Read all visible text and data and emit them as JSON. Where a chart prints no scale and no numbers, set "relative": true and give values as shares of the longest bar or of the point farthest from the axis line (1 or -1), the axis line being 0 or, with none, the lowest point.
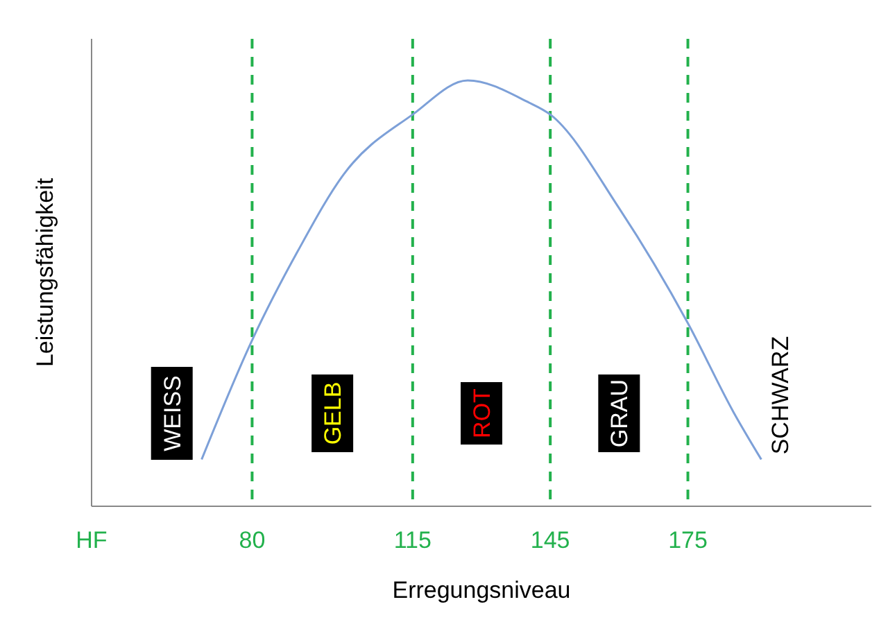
{
  "chart_data": {
    "type": "line",
    "relative": true,
    "xlabel": "Erregungsniveau",
    "ylabel": "Leistungsfähigkeit",
    "x": [
      69,
      80,
      90,
      100,
      115,
      127,
      140,
      145,
      160,
      175,
      185,
      191
    ],
    "series": [
      {
        "color": "#7da0d8",
        "values": [
          0.11,
          0.39,
          0.6,
          0.78,
          0.92,
          1,
          0.95,
          0.92,
          0.7,
          0.43,
          0.22,
          0.11
        ]
      }
    ],
    "xlim": [
      45,
      215
    ],
    "xticks": [
      {
        "value": 45,
        "label": "HF"
      },
      80,
      115,
      145,
      175
    ],
    "ref_lines": [
      {
        "axis": "x",
        "value": 80,
        "color": "#22b14c",
        "line_style": "dashed"
      },
      {
        "axis": "x",
        "value": 115,
        "color": "#22b14c",
        "line_style": "dashed"
      },
      {
        "axis": "x",
        "value": 145,
        "color": "#22b14c",
        "line_style": "dashed"
      },
      {
        "axis": "x",
        "value": 175,
        "color": "#22b14c",
        "line_style": "dashed"
      }
    ],
    "annotations": [
      "WEISS",
      "GELB",
      "ROT",
      "GRAU",
      "SCHWARZ"
    ]
  }
}
